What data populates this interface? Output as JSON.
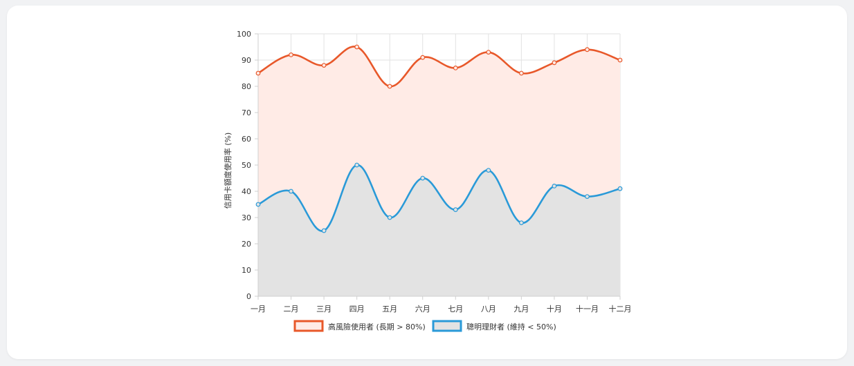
{
  "chart_data": {
    "type": "line",
    "ylabel": "信用卡額度使用率 (%)",
    "xlabel": "",
    "title": "",
    "ylim": [
      0,
      100
    ],
    "yticks": [
      0,
      10,
      20,
      30,
      40,
      50,
      60,
      70,
      80,
      90,
      100
    ],
    "categories": [
      "一月",
      "二月",
      "三月",
      "四月",
      "五月",
      "六月",
      "七月",
      "八月",
      "九月",
      "十月",
      "十一月",
      "十二月"
    ],
    "grid": true,
    "legend_position": "bottom",
    "series": [
      {
        "name": "高風險使用者 (長期 > 80%)",
        "values": [
          85,
          92,
          88,
          95,
          80,
          91,
          87,
          93,
          85,
          89,
          94,
          90
        ],
        "color": "#e8582a",
        "fill": "#ffebe6"
      },
      {
        "name": "聰明理財者 (維持 < 50%)",
        "values": [
          35,
          40,
          25,
          50,
          30,
          45,
          33,
          48,
          28,
          42,
          38,
          41
        ],
        "color": "#2a9ad8",
        "fill": "#e3e3e3"
      }
    ]
  }
}
